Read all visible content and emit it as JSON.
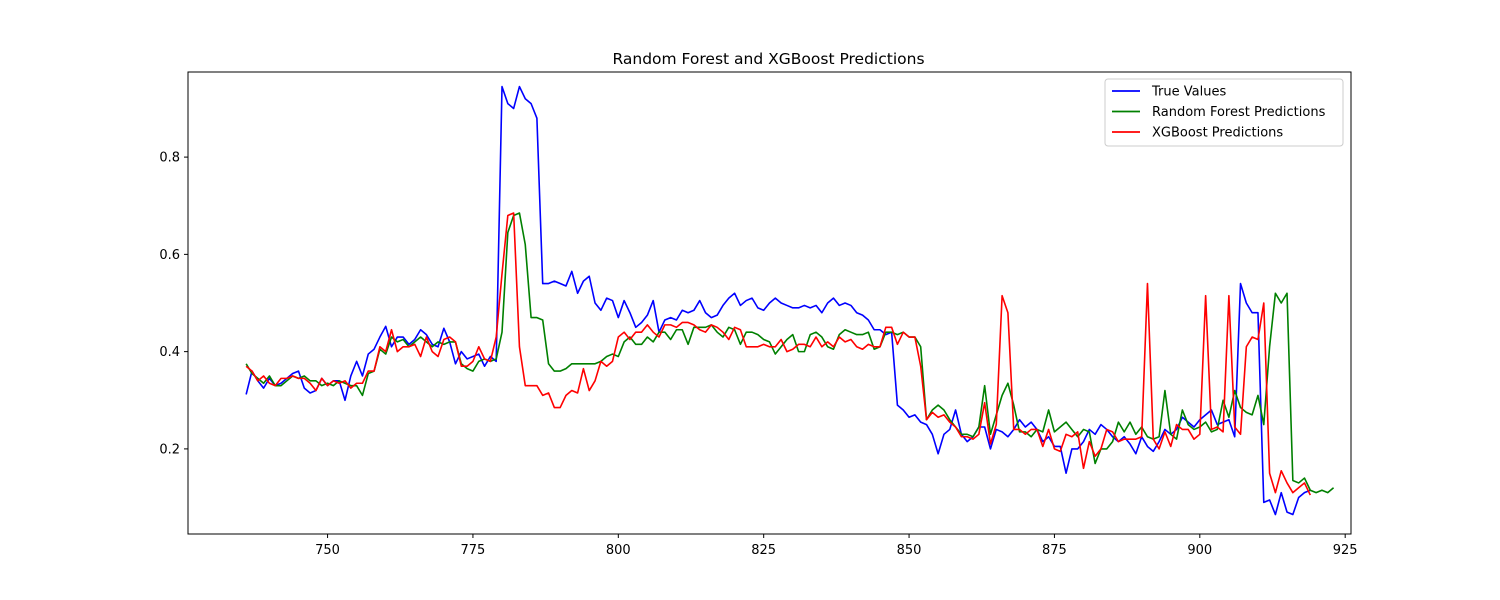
{
  "chart_data": {
    "type": "line",
    "title": "Random Forest and XGBoost Predictions",
    "xlabel": "",
    "ylabel": "",
    "xlim": [
      726,
      926
    ],
    "ylim": [
      0.025,
      0.975
    ],
    "x_ticks": [
      750,
      775,
      800,
      825,
      850,
      875,
      900,
      925
    ],
    "y_ticks": [
      0.2,
      0.4,
      0.6,
      0.8
    ],
    "grid": false,
    "legend_position": "top-right",
    "x_start": 736,
    "series": [
      {
        "name": "True Values",
        "color": "#0000ff",
        "values": [
          0.312,
          0.36,
          0.34,
          0.325,
          0.345,
          0.33,
          0.335,
          0.345,
          0.355,
          0.36,
          0.325,
          0.315,
          0.32,
          0.345,
          0.33,
          0.34,
          0.34,
          0.3,
          0.35,
          0.38,
          0.35,
          0.395,
          0.405,
          0.43,
          0.452,
          0.41,
          0.43,
          0.43,
          0.415,
          0.425,
          0.445,
          0.435,
          0.415,
          0.41,
          0.448,
          0.42,
          0.375,
          0.4,
          0.385,
          0.39,
          0.395,
          0.37,
          0.39,
          0.38,
          0.945,
          0.91,
          0.9,
          0.945,
          0.92,
          0.91,
          0.88,
          0.54,
          0.54,
          0.545,
          0.54,
          0.535,
          0.565,
          0.52,
          0.545,
          0.555,
          0.5,
          0.485,
          0.51,
          0.505,
          0.47,
          0.505,
          0.48,
          0.45,
          0.46,
          0.475,
          0.505,
          0.44,
          0.465,
          0.47,
          0.465,
          0.485,
          0.48,
          0.485,
          0.505,
          0.48,
          0.47,
          0.475,
          0.495,
          0.51,
          0.52,
          0.495,
          0.505,
          0.51,
          0.49,
          0.485,
          0.5,
          0.51,
          0.5,
          0.495,
          0.49,
          0.49,
          0.495,
          0.49,
          0.495,
          0.48,
          0.5,
          0.51,
          0.495,
          0.5,
          0.495,
          0.48,
          0.475,
          0.465,
          0.445,
          0.445,
          0.435,
          0.44,
          0.29,
          0.28,
          0.265,
          0.27,
          0.255,
          0.25,
          0.23,
          0.19,
          0.23,
          0.24,
          0.28,
          0.23,
          0.215,
          0.225,
          0.245,
          0.245,
          0.2,
          0.24,
          0.235,
          0.225,
          0.24,
          0.26,
          0.245,
          0.255,
          0.24,
          0.215,
          0.225,
          0.205,
          0.205,
          0.15,
          0.2,
          0.2,
          0.215,
          0.24,
          0.23,
          0.25,
          0.24,
          0.225,
          0.215,
          0.225,
          0.21,
          0.19,
          0.225,
          0.205,
          0.195,
          0.215,
          0.24,
          0.23,
          0.24,
          0.265,
          0.255,
          0.245,
          0.26,
          0.27,
          0.28,
          0.25,
          0.255,
          0.26,
          0.225,
          0.54,
          0.5,
          0.48,
          0.48,
          0.09,
          0.095,
          0.065,
          0.11,
          0.07,
          0.065,
          0.1,
          0.11,
          0.115
        ]
      },
      {
        "name": "Random Forest Predictions",
        "color": "#008000",
        "values": [
          0.375,
          0.355,
          0.345,
          0.335,
          0.35,
          0.33,
          0.33,
          0.34,
          0.35,
          0.345,
          0.35,
          0.34,
          0.34,
          0.33,
          0.335,
          0.33,
          0.34,
          0.335,
          0.33,
          0.33,
          0.31,
          0.355,
          0.36,
          0.405,
          0.395,
          0.43,
          0.42,
          0.425,
          0.41,
          0.42,
          0.43,
          0.42,
          0.41,
          0.42,
          0.415,
          0.42,
          0.42,
          0.375,
          0.365,
          0.36,
          0.38,
          0.385,
          0.38,
          0.385,
          0.44,
          0.645,
          0.68,
          0.685,
          0.62,
          0.47,
          0.47,
          0.465,
          0.375,
          0.36,
          0.36,
          0.365,
          0.375,
          0.375,
          0.375,
          0.375,
          0.375,
          0.38,
          0.39,
          0.395,
          0.39,
          0.42,
          0.43,
          0.415,
          0.415,
          0.43,
          0.42,
          0.44,
          0.44,
          0.425,
          0.445,
          0.445,
          0.415,
          0.45,
          0.45,
          0.45,
          0.455,
          0.44,
          0.43,
          0.45,
          0.445,
          0.415,
          0.44,
          0.44,
          0.435,
          0.425,
          0.42,
          0.395,
          0.41,
          0.425,
          0.435,
          0.4,
          0.4,
          0.435,
          0.44,
          0.43,
          0.41,
          0.405,
          0.435,
          0.445,
          0.44,
          0.435,
          0.435,
          0.44,
          0.405,
          0.41,
          0.44,
          0.44,
          0.435,
          0.44,
          0.43,
          0.43,
          0.41,
          0.26,
          0.28,
          0.29,
          0.28,
          0.26,
          0.245,
          0.23,
          0.23,
          0.225,
          0.245,
          0.33,
          0.23,
          0.27,
          0.31,
          0.335,
          0.29,
          0.235,
          0.235,
          0.225,
          0.24,
          0.235,
          0.28,
          0.235,
          0.245,
          0.255,
          0.24,
          0.225,
          0.24,
          0.235,
          0.17,
          0.2,
          0.2,
          0.215,
          0.255,
          0.235,
          0.255,
          0.23,
          0.245,
          0.225,
          0.22,
          0.225,
          0.32,
          0.23,
          0.22,
          0.28,
          0.25,
          0.24,
          0.245,
          0.255,
          0.235,
          0.24,
          0.3,
          0.265,
          0.32,
          0.285,
          0.275,
          0.27,
          0.31,
          0.25,
          0.41,
          0.52,
          0.5,
          0.52,
          0.135,
          0.13,
          0.14,
          0.115,
          0.11,
          0.115,
          0.11,
          0.12
        ]
      },
      {
        "name": "XGBoost Predictions",
        "color": "#ff0000",
        "values": [
          0.37,
          0.36,
          0.34,
          0.35,
          0.335,
          0.33,
          0.345,
          0.345,
          0.35,
          0.345,
          0.345,
          0.335,
          0.32,
          0.345,
          0.33,
          0.34,
          0.335,
          0.34,
          0.325,
          0.335,
          0.335,
          0.36,
          0.36,
          0.41,
          0.4,
          0.445,
          0.4,
          0.41,
          0.41,
          0.415,
          0.39,
          0.43,
          0.4,
          0.39,
          0.425,
          0.43,
          0.42,
          0.37,
          0.37,
          0.38,
          0.41,
          0.385,
          0.38,
          0.43,
          0.56,
          0.68,
          0.685,
          0.41,
          0.33,
          0.33,
          0.33,
          0.31,
          0.315,
          0.285,
          0.285,
          0.31,
          0.32,
          0.315,
          0.365,
          0.32,
          0.34,
          0.38,
          0.37,
          0.38,
          0.43,
          0.44,
          0.425,
          0.44,
          0.44,
          0.455,
          0.44,
          0.43,
          0.455,
          0.455,
          0.45,
          0.46,
          0.46,
          0.455,
          0.445,
          0.44,
          0.455,
          0.45,
          0.44,
          0.425,
          0.45,
          0.445,
          0.41,
          0.41,
          0.41,
          0.415,
          0.41,
          0.41,
          0.425,
          0.4,
          0.405,
          0.415,
          0.415,
          0.41,
          0.43,
          0.41,
          0.42,
          0.41,
          0.43,
          0.42,
          0.425,
          0.41,
          0.405,
          0.415,
          0.41,
          0.41,
          0.45,
          0.45,
          0.415,
          0.44,
          0.43,
          0.43,
          0.37,
          0.26,
          0.275,
          0.265,
          0.27,
          0.255,
          0.245,
          0.225,
          0.225,
          0.22,
          0.23,
          0.295,
          0.21,
          0.25,
          0.515,
          0.48,
          0.24,
          0.24,
          0.23,
          0.24,
          0.24,
          0.205,
          0.24,
          0.2,
          0.195,
          0.23,
          0.225,
          0.235,
          0.16,
          0.215,
          0.185,
          0.2,
          0.24,
          0.235,
          0.215,
          0.22,
          0.22,
          0.22,
          0.225,
          0.54,
          0.22,
          0.2,
          0.235,
          0.205,
          0.25,
          0.24,
          0.24,
          0.22,
          0.23,
          0.515,
          0.24,
          0.245,
          0.235,
          0.515,
          0.245,
          0.23,
          0.41,
          0.43,
          0.425,
          0.5,
          0.15,
          0.11,
          0.155,
          0.13,
          0.11,
          0.12,
          0.13,
          0.105
        ]
      }
    ]
  }
}
